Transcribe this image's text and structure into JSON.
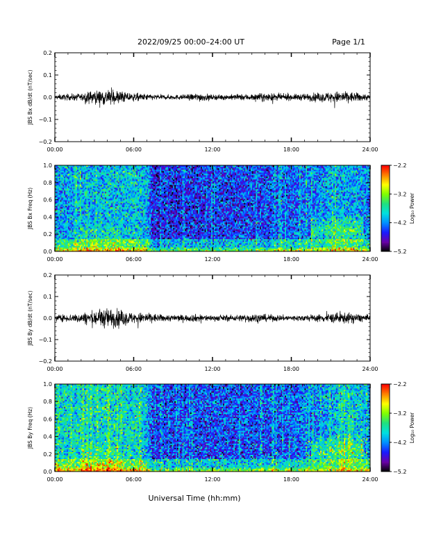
{
  "header": {
    "title": "2022/09/25  00:00–24:00 UT",
    "page": "Page 1/1"
  },
  "footer": {
    "xlabel": "Universal Time (hh:mm)"
  },
  "colors": {
    "trace": "#000000",
    "colormap": [
      "#000000",
      "#6a00a8",
      "#1a1aff",
      "#0090ff",
      "#00e0e0",
      "#20e080",
      "#80ff00",
      "#ffff00",
      "#ff8000",
      "#ff0000"
    ]
  },
  "chart_data": [
    {
      "type": "line",
      "title": "",
      "xlabel": "",
      "ylabel": "JBS Bx dB/dt (nT/sec)",
      "xlim": [
        0,
        24
      ],
      "ylim": [
        -0.2,
        0.2
      ],
      "x_tick_labels": [
        "00:00",
        "06:00",
        "12:00",
        "18:00",
        "24:00"
      ],
      "y_tick_labels": [
        "0.2",
        "0.1",
        "0.0",
        "−0.1",
        "−0.2"
      ],
      "envelope": {
        "hours": [
          0,
          2,
          3,
          4,
          5,
          6,
          7,
          8,
          10,
          11,
          12,
          14,
          16,
          18,
          20,
          21,
          22,
          23,
          24
        ],
        "amplitude": [
          0.012,
          0.018,
          0.032,
          0.04,
          0.03,
          0.02,
          0.016,
          0.012,
          0.012,
          0.022,
          0.012,
          0.014,
          0.02,
          0.014,
          0.02,
          0.026,
          0.03,
          0.022,
          0.014
        ]
      }
    },
    {
      "type": "heatmap",
      "title": "",
      "xlabel": "",
      "ylabel": "JBS Bx Freq (Hz)",
      "xlim": [
        0,
        24
      ],
      "ylim": [
        0.0,
        1.0
      ],
      "x_tick_labels": [
        "00:00",
        "06:00",
        "12:00",
        "18:00",
        "24:00"
      ],
      "y_tick_labels": [
        "1.0",
        "0.8",
        "0.6",
        "0.4",
        "0.2",
        "0.0"
      ],
      "colorbar": {
        "label": "Log₁₀ Power",
        "ticks": [
          "−2.2",
          "−3.2",
          "−4.2",
          "−5.2"
        ],
        "range": [
          -5.2,
          -2.2
        ]
      },
      "description_levels": {
        "hours": [
          0,
          3,
          6,
          7,
          7.5,
          12,
          17,
          20,
          22,
          24
        ],
        "background_log_power": [
          -4.1,
          -4.0,
          -3.9,
          -4.0,
          -4.6,
          -4.5,
          -4.4,
          -4.2,
          -4.0,
          -4.2
        ]
      }
    },
    {
      "type": "line",
      "title": "",
      "xlabel": "",
      "ylabel": "JBS By dB/dt (nT/sec)",
      "xlim": [
        0,
        24
      ],
      "ylim": [
        -0.2,
        0.2
      ],
      "x_tick_labels": [
        "00:00",
        "06:00",
        "12:00",
        "18:00",
        "24:00"
      ],
      "y_tick_labels": [
        "0.2",
        "0.1",
        "0.0",
        "−0.1",
        "−0.2"
      ],
      "envelope": {
        "hours": [
          0,
          2,
          3,
          4,
          5,
          6,
          7,
          8,
          10,
          11,
          12,
          14,
          15,
          16,
          18,
          20,
          21,
          22,
          23,
          24
        ],
        "amplitude": [
          0.014,
          0.024,
          0.04,
          0.05,
          0.04,
          0.026,
          0.028,
          0.018,
          0.016,
          0.02,
          0.014,
          0.016,
          0.024,
          0.018,
          0.014,
          0.018,
          0.024,
          0.028,
          0.022,
          0.016
        ]
      }
    },
    {
      "type": "heatmap",
      "title": "",
      "xlabel": "",
      "ylabel": "JBS By Freq (Hz)",
      "xlim": [
        0,
        24
      ],
      "ylim": [
        0.0,
        1.0
      ],
      "x_tick_labels": [
        "00:00",
        "06:00",
        "12:00",
        "18:00",
        "24:00"
      ],
      "y_tick_labels": [
        "1.0",
        "0.8",
        "0.6",
        "0.4",
        "0.2",
        "0.0"
      ],
      "colorbar": {
        "label": "Log₁₀ Power",
        "ticks": [
          "−2.2",
          "−3.2",
          "−4.2",
          "−5.2"
        ],
        "range": [
          -5.2,
          -2.2
        ]
      },
      "description_levels": {
        "hours": [
          0,
          3,
          6,
          7,
          7.5,
          12,
          17,
          20,
          22,
          24
        ],
        "background_log_power": [
          -3.8,
          -3.8,
          -3.8,
          -4.0,
          -4.5,
          -4.4,
          -4.4,
          -4.2,
          -3.9,
          -4.1
        ]
      }
    }
  ]
}
